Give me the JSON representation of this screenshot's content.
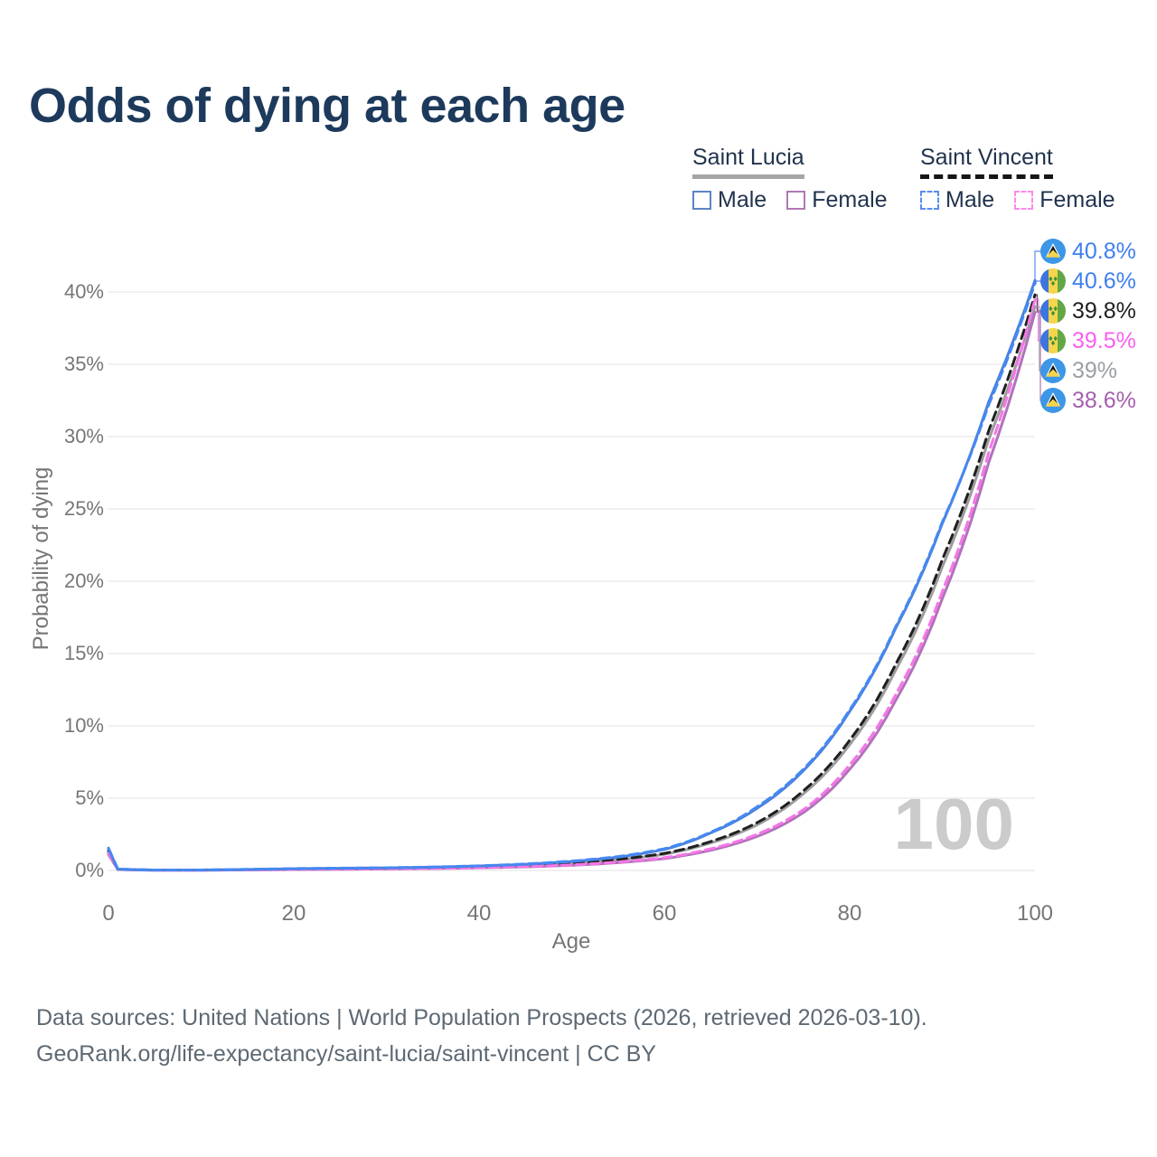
{
  "title": "Odds of dying at each age",
  "watermark": "100",
  "legend": {
    "groups": [
      {
        "name": "Saint Lucia",
        "line_style": "solid",
        "underline_color": "#a5a5a5",
        "items": [
          {
            "label": "Male",
            "color": "#5b83c7"
          },
          {
            "label": "Female",
            "color": "#b077b3"
          }
        ]
      },
      {
        "name": "Saint Vincent",
        "line_style": "dashed",
        "underline_color": "#151515",
        "items": [
          {
            "label": "Male",
            "color": "#5a8cf0"
          },
          {
            "label": "Female",
            "color": "#fb8ae8"
          }
        ]
      }
    ]
  },
  "end_labels": [
    {
      "flag": "saint-lucia",
      "value": "40.8%",
      "numeric": 40.8,
      "color": "#3f7ef0"
    },
    {
      "flag": "saint-vincent",
      "value": "40.6%",
      "numeric": 40.6,
      "color": "#3f7ef0"
    },
    {
      "flag": "saint-vincent",
      "value": "39.8%",
      "numeric": 39.8,
      "color": "#1f1f1f"
    },
    {
      "flag": "saint-vincent",
      "value": "39.5%",
      "numeric": 39.5,
      "color": "#fa5ff0"
    },
    {
      "flag": "saint-lucia",
      "value": "39%",
      "numeric": 39.0,
      "color": "#9aa0a6"
    },
    {
      "flag": "saint-lucia",
      "value": "38.6%",
      "numeric": 38.6,
      "color": "#a55fae"
    }
  ],
  "footer": {
    "line1": "Data sources: United Nations | World Population Prospects (2026, retrieved 2026-03-10).",
    "line2": "GeoRank.org/life-expectancy/saint-lucia/saint-vincent | CC BY"
  },
  "chart_data": {
    "type": "line",
    "title": "Odds of dying at each age",
    "xlabel": "Age",
    "ylabel": "Probability of dying",
    "xlim": [
      0,
      100
    ],
    "ylim_percent": [
      0,
      43
    ],
    "grid": "horizontal",
    "x_ticks": [
      "0",
      "20",
      "40",
      "60",
      "80",
      "100"
    ],
    "y_ticks": [
      "0%",
      "5%",
      "10%",
      "15%",
      "20%",
      "25%",
      "30%",
      "35%",
      "40%"
    ],
    "ages": [
      0,
      1,
      5,
      10,
      15,
      20,
      25,
      30,
      35,
      40,
      45,
      50,
      55,
      60,
      65,
      70,
      75,
      80,
      85,
      90,
      95,
      100
    ],
    "series": [
      {
        "name": "Saint Lucia Total",
        "country": "Saint Lucia",
        "group": "Total",
        "style": "solid",
        "color": "#9d9d9d",
        "values": [
          1.3,
          0.08,
          0.02,
          0.02,
          0.05,
          0.09,
          0.12,
          0.14,
          0.18,
          0.24,
          0.34,
          0.49,
          0.73,
          1.12,
          1.9,
          3.15,
          5.3,
          8.7,
          13.9,
          21.0,
          29.8,
          39.0
        ]
      },
      {
        "name": "Saint Vincent Total",
        "country": "Saint Vincent",
        "group": "Total",
        "style": "dashed",
        "color": "#1f1f1f",
        "values": [
          1.35,
          0.09,
          0.03,
          0.03,
          0.06,
          0.1,
          0.13,
          0.15,
          0.19,
          0.26,
          0.36,
          0.52,
          0.77,
          1.18,
          2.0,
          3.3,
          5.5,
          9.0,
          14.3,
          21.5,
          30.4,
          39.8
        ]
      },
      {
        "name": "Saint Lucia Female",
        "country": "Saint Lucia",
        "group": "Female",
        "style": "solid",
        "color": "#b172ba",
        "values": [
          1.1,
          0.07,
          0.02,
          0.02,
          0.04,
          0.06,
          0.08,
          0.1,
          0.13,
          0.18,
          0.25,
          0.36,
          0.54,
          0.82,
          1.4,
          2.35,
          4.0,
          7.0,
          11.8,
          18.8,
          28.2,
          38.6
        ]
      },
      {
        "name": "Saint Vincent Female",
        "country": "Saint Vincent",
        "group": "Female",
        "style": "dashed",
        "color": "#f775e8",
        "values": [
          1.2,
          0.08,
          0.02,
          0.02,
          0.04,
          0.07,
          0.09,
          0.11,
          0.14,
          0.19,
          0.27,
          0.39,
          0.58,
          0.88,
          1.5,
          2.5,
          4.2,
          7.3,
          12.2,
          19.3,
          28.9,
          39.5
        ]
      },
      {
        "name": "Saint Lucia Male",
        "country": "Saint Lucia",
        "group": "Male",
        "style": "solid",
        "color": "#4d80d8",
        "values": [
          1.5,
          0.09,
          0.03,
          0.03,
          0.07,
          0.12,
          0.15,
          0.18,
          0.23,
          0.31,
          0.43,
          0.62,
          0.92,
          1.45,
          2.6,
          4.3,
          6.9,
          11.0,
          16.8,
          24.0,
          32.4,
          40.8
        ]
      },
      {
        "name": "Saint Vincent Male",
        "country": "Saint Vincent",
        "group": "Male",
        "style": "dashed",
        "color": "#4489f4",
        "values": [
          1.55,
          0.1,
          0.03,
          0.03,
          0.08,
          0.13,
          0.16,
          0.19,
          0.24,
          0.32,
          0.45,
          0.65,
          0.96,
          1.5,
          2.65,
          4.4,
          7.0,
          11.1,
          16.9,
          24.1,
          32.2,
          40.6
        ]
      }
    ]
  }
}
